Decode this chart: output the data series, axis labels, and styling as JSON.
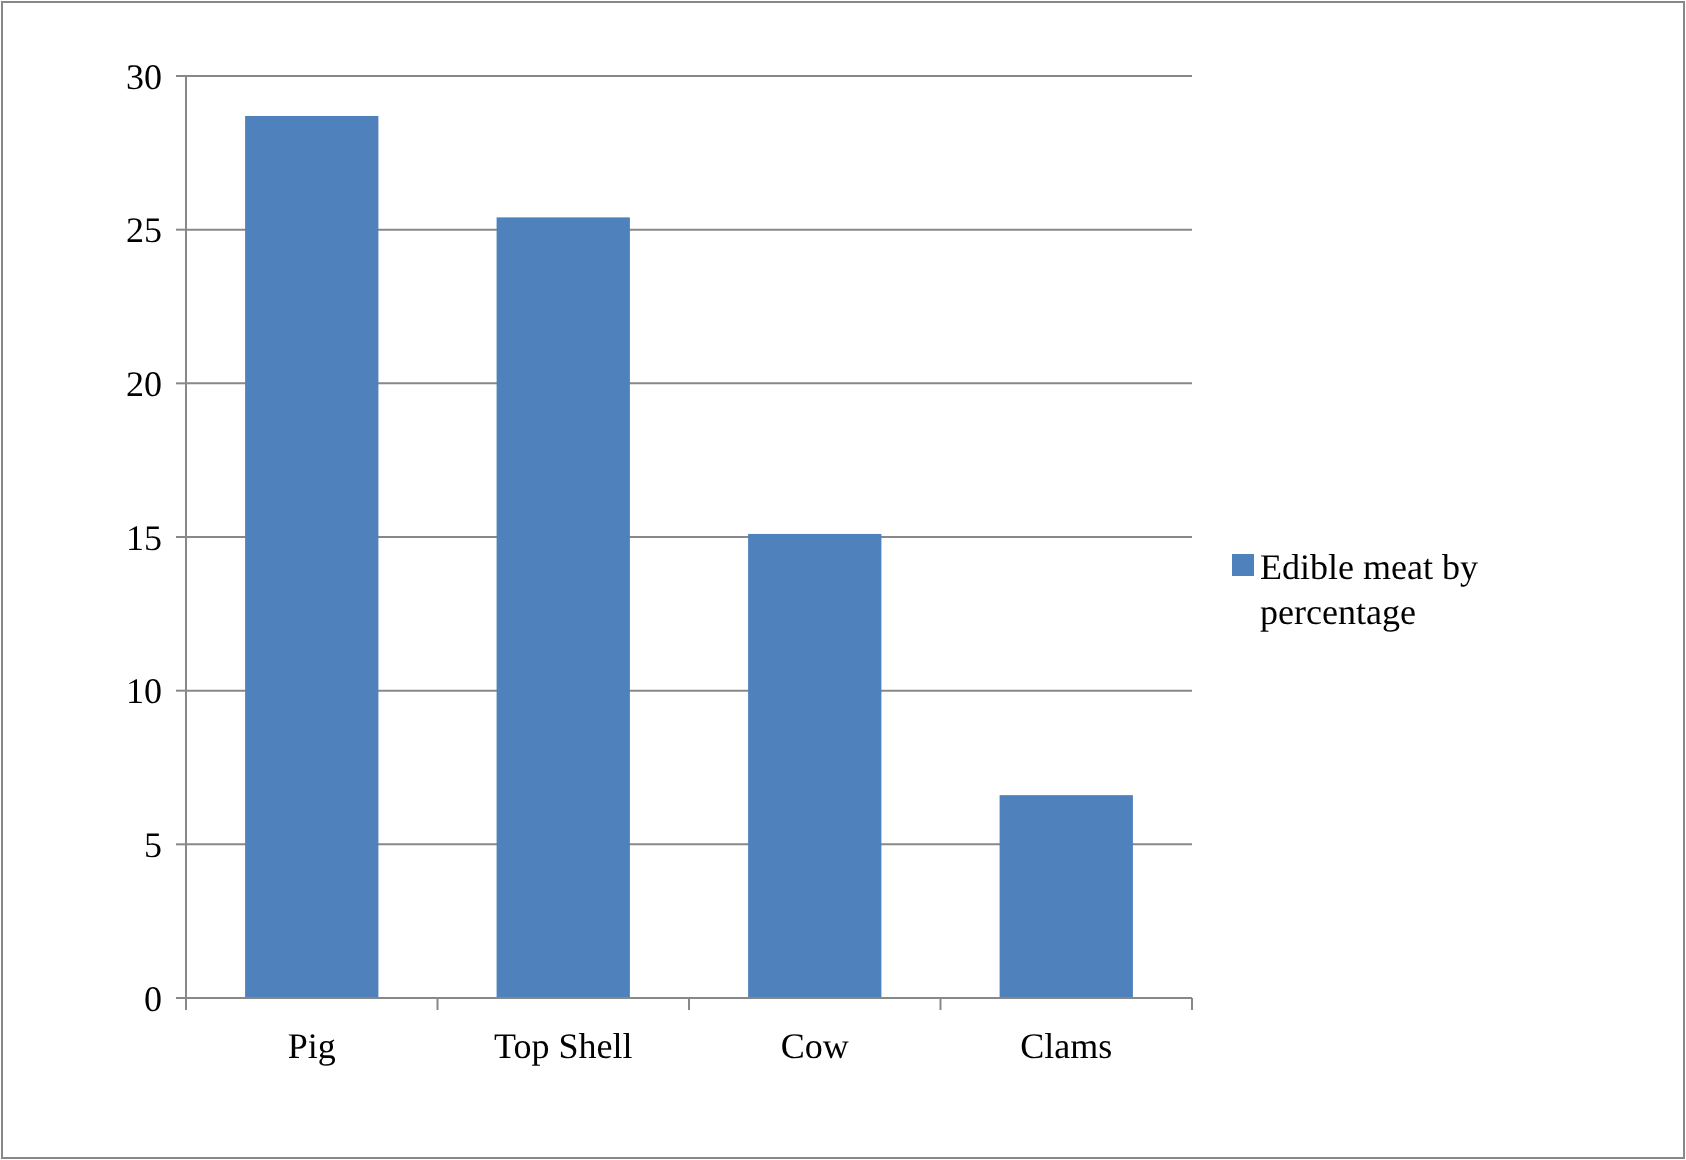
{
  "chart_data": {
    "type": "bar",
    "categories": [
      "Pig",
      "Top Shell",
      "Cow",
      "Clams"
    ],
    "series": [
      {
        "name": "Edible meat by percentage",
        "color": "#4f81bd",
        "values": [
          28.7,
          25.4,
          15.1,
          6.6
        ]
      }
    ],
    "ylim": [
      0,
      30
    ],
    "yticks": [
      0,
      5,
      10,
      15,
      20,
      25,
      30
    ],
    "grid": "y",
    "legend": "right"
  }
}
